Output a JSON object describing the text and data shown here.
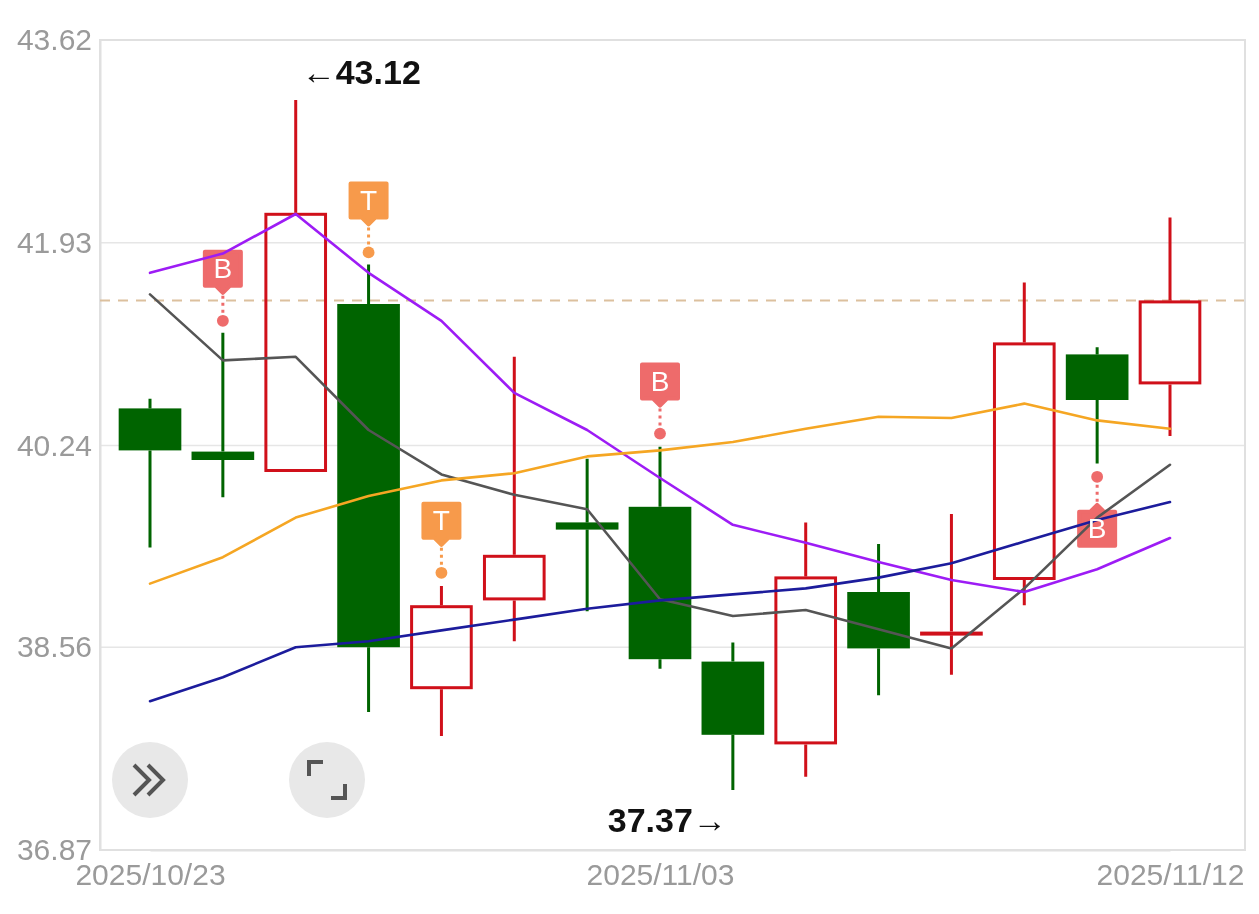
{
  "chart_data": {
    "type": "candlestick",
    "categories": [
      "2025/10/23",
      null,
      null,
      null,
      null,
      null,
      null,
      "2025/11/03",
      null,
      null,
      null,
      null,
      null,
      null,
      "2025/11/12"
    ],
    "ohlc": [
      [
        40.55,
        40.63,
        39.39,
        40.2
      ],
      [
        40.19,
        41.18,
        39.81,
        40.12
      ],
      [
        40.02,
        43.12,
        40.02,
        42.18
      ],
      [
        41.42,
        41.75,
        38.02,
        38.56
      ],
      [
        38.21,
        39.07,
        37.82,
        38.91
      ],
      [
        38.95,
        40.98,
        38.61,
        39.33
      ],
      [
        39.6,
        40.13,
        38.86,
        39.54
      ],
      [
        39.73,
        40.23,
        38.38,
        38.46
      ],
      [
        38.44,
        38.6,
        37.37,
        37.83
      ],
      [
        37.75,
        39.6,
        37.48,
        39.15
      ],
      [
        39.02,
        39.42,
        38.16,
        38.55
      ],
      [
        38.66,
        39.67,
        38.33,
        38.69
      ],
      [
        39.12,
        41.6,
        38.91,
        41.1
      ],
      [
        41.0,
        41.06,
        40.09,
        40.62
      ],
      [
        40.75,
        42.14,
        40.32,
        41.45
      ]
    ],
    "colors": [
      "#006400",
      "#006400",
      "#d0101a",
      "#006400",
      "#d0101a",
      "#d0101a",
      "#006400",
      "#006400",
      "#006400",
      "#d0101a",
      "#006400",
      "#d0101a",
      "#d0101a",
      "#006400",
      "#d0101a"
    ],
    "series": [
      {
        "type": "line",
        "color": "#555555",
        "values": [
          41.5,
          40.95,
          40.98,
          40.37,
          40.0,
          39.83,
          39.71,
          38.96,
          38.82,
          38.87,
          38.71,
          38.55,
          39.05,
          39.64,
          40.08
        ]
      },
      {
        "type": "line",
        "color": "#9d1cf5",
        "values": [
          41.68,
          41.84,
          42.17,
          41.68,
          41.28,
          40.68,
          40.37,
          39.97,
          39.58,
          39.43,
          39.27,
          39.12,
          39.02,
          39.21,
          39.47
        ]
      },
      {
        "type": "line",
        "color": "#f5a623",
        "values": [
          39.09,
          39.31,
          39.64,
          39.82,
          39.95,
          40.01,
          40.15,
          40.2,
          40.27,
          40.38,
          40.48,
          40.47,
          40.59,
          40.45,
          40.38
        ]
      },
      {
        "type": "line",
        "color": "#1c1c9c",
        "values": [
          38.11,
          38.31,
          38.56,
          38.61,
          38.7,
          38.79,
          38.88,
          38.95,
          39.0,
          39.05,
          39.14,
          39.26,
          39.44,
          39.62,
          39.77
        ]
      },
      {
        "type": "scatter",
        "color": "#ee6b6b",
        "marker": "circle",
        "values": [
          null,
          41.28,
          null,
          null,
          null,
          null,
          null,
          40.34,
          null,
          null,
          null,
          null,
          null,
          39.98,
          null
        ],
        "value_labels": [
          null,
          "B",
          null,
          null,
          null,
          null,
          null,
          "B",
          null,
          null,
          null,
          null,
          null,
          "B",
          null
        ]
      },
      {
        "type": "scatter",
        "color": "#f79a4b",
        "marker": "circle",
        "values": [
          null,
          null,
          null,
          41.85,
          39.18,
          null,
          null,
          null,
          null,
          null,
          null,
          null,
          null,
          null,
          null
        ],
        "value_labels": [
          null,
          null,
          null,
          "T",
          "T",
          null,
          null,
          null,
          null,
          null,
          null,
          null,
          null,
          null,
          null
        ]
      }
    ],
    "ylim": [
      36.87,
      43.62
    ],
    "yticks": [
      36.87,
      38.56,
      40.24,
      41.93,
      43.62
    ],
    "grid": "y",
    "ref_lines": [
      {
        "axis": "y",
        "value": 41.45,
        "color": "#dcc09e",
        "line_style": "dashed"
      }
    ],
    "annotations": [
      "←43.12",
      "37.37→"
    ]
  }
}
